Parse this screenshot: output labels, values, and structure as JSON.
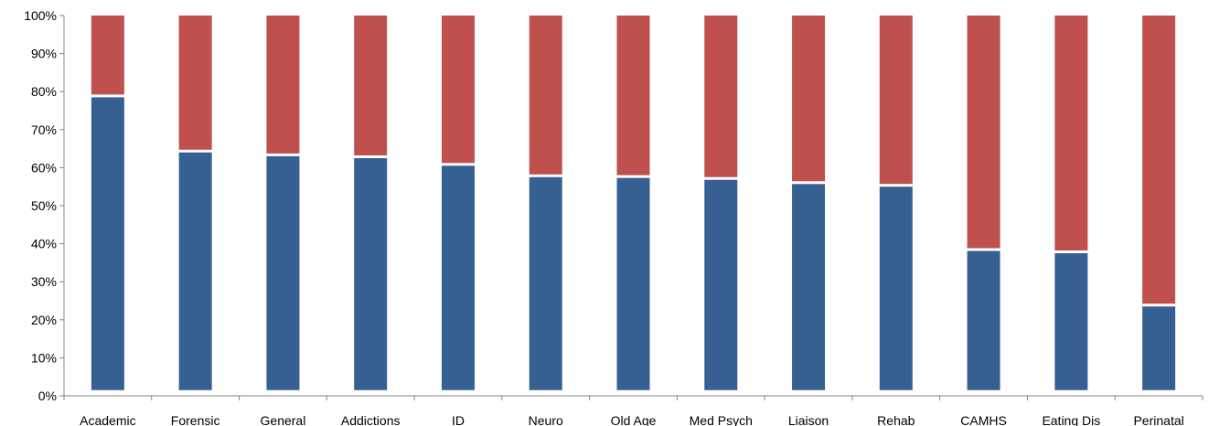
{
  "chart_data": {
    "type": "bar",
    "stacked": true,
    "categories": [
      "Academic",
      "Forensic",
      "General",
      "Addictions",
      "ID",
      "Neuro",
      "Old Age",
      "Med Psych",
      "Liaison",
      "Rehab",
      "CAMHS",
      "Eating Dis",
      "Perinatal"
    ],
    "series": [
      {
        "color": "#376092",
        "values": [
          77,
          62.5,
          61.5,
          61,
          59,
          56,
          55.8,
          55.3,
          54.2,
          53.5,
          36.6,
          36,
          22
        ]
      },
      {
        "color": "#C0504D",
        "values": [
          21.5,
          36,
          37,
          37.5,
          39.5,
          42.5,
          42.7,
          43.2,
          44.3,
          45,
          61.9,
          62.5,
          76.5
        ]
      }
    ],
    "ylim": [
      0,
      100
    ],
    "yticks": [
      "0%",
      "10%",
      "20%",
      "30%",
      "40%",
      "50%",
      "60%",
      "70%",
      "80%",
      "90%",
      "100%"
    ],
    "grid": false,
    "legend": "none",
    "xlabel": "",
    "ylabel": ""
  }
}
